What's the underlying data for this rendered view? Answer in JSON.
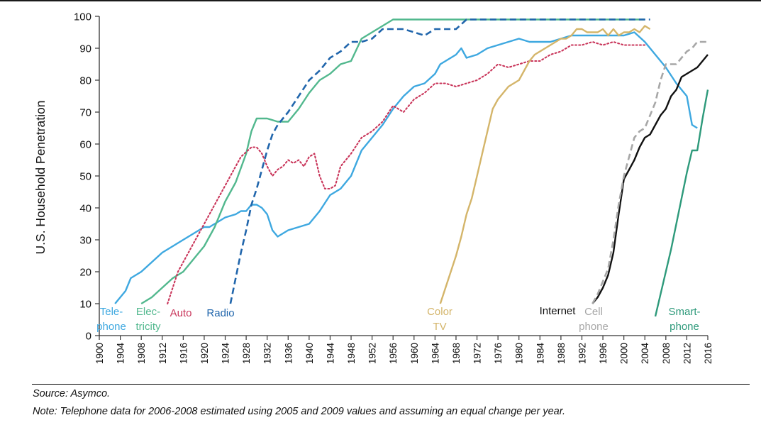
{
  "footer": {
    "source": "Source: Asymco.",
    "note": "Note: Telephone data for 2006-2008 estimated using 2005 and 2009 values and assuming an equal change per year."
  },
  "chart_data": {
    "type": "line",
    "title": "",
    "xlabel": "",
    "ylabel": "U.S. Household Penetration",
    "xlim": [
      1900,
      2016
    ],
    "ylim": [
      0,
      100
    ],
    "xticks": [
      1900,
      1904,
      1908,
      1912,
      1916,
      1920,
      1924,
      1928,
      1932,
      1936,
      1940,
      1944,
      1948,
      1952,
      1956,
      1960,
      1964,
      1968,
      1972,
      1976,
      1980,
      1984,
      1988,
      1992,
      1996,
      2000,
      2004,
      2008,
      2012,
      2016
    ],
    "yticks": [
      0,
      10,
      20,
      30,
      40,
      50,
      60,
      70,
      80,
      90,
      100
    ],
    "grid": false,
    "legend": "none",
    "series": [
      {
        "key": "telephone",
        "label_lines": [
          "Tele-",
          "phone"
        ],
        "color": "#3ea8e0",
        "dash": "solid",
        "x": [
          1903,
          1905,
          1906,
          1908,
          1910,
          1912,
          1914,
          1916,
          1918,
          1920,
          1921,
          1922,
          1924,
          1926,
          1927,
          1928,
          1929,
          1930,
          1931,
          1932,
          1933,
          1934,
          1936,
          1938,
          1940,
          1942,
          1944,
          1946,
          1948,
          1950,
          1952,
          1954,
          1956,
          1958,
          1960,
          1962,
          1964,
          1965,
          1966,
          1968,
          1969,
          1970,
          1972,
          1974,
          1976,
          1978,
          1980,
          1982,
          1984,
          1986,
          1988,
          1990,
          1992,
          1994,
          1996,
          1998,
          2000,
          2002,
          2004,
          2006,
          2008,
          2010,
          2011,
          2012,
          2013,
          2014
        ],
        "y": [
          10,
          14,
          18,
          20,
          23,
          26,
          28,
          30,
          32,
          34,
          34,
          35,
          37,
          38,
          39,
          39,
          41,
          41,
          40,
          38,
          33,
          31,
          33,
          34,
          35,
          39,
          44,
          46,
          50,
          58,
          62,
          66,
          71,
          75,
          78,
          79,
          82,
          85,
          86,
          88,
          90,
          87,
          88,
          90,
          91,
          92,
          93,
          92,
          92,
          92,
          93,
          94,
          94,
          94,
          94,
          94,
          94,
          95,
          92,
          88,
          84,
          79,
          77,
          75,
          66,
          65
        ],
        "markers": false
      },
      {
        "key": "electricity",
        "label_lines": [
          "Elec-",
          "tricity"
        ],
        "color": "#52b88e",
        "dash": "solid",
        "x": [
          1908,
          1910,
          1912,
          1914,
          1916,
          1918,
          1920,
          1922,
          1924,
          1926,
          1928,
          1929,
          1930,
          1932,
          1934,
          1936,
          1938,
          1940,
          1942,
          1944,
          1946,
          1948,
          1950,
          1952,
          1954,
          1956,
          1958,
          1960,
          1962,
          1964,
          1966,
          1968,
          1970,
          1972,
          1976,
          1980,
          1984,
          1988,
          1992,
          1996,
          2000,
          2004
        ],
        "y": [
          10,
          12,
          15,
          18,
          20,
          24,
          28,
          34,
          42,
          48,
          57,
          64,
          68,
          68,
          67,
          67,
          71,
          76,
          80,
          82,
          85,
          86,
          93,
          95,
          97,
          99,
          99,
          99,
          99,
          99,
          99,
          99,
          99,
          99,
          99,
          99,
          99,
          99,
          99,
          99,
          99,
          99
        ],
        "markers": false
      },
      {
        "key": "auto",
        "label_lines": [
          "Auto"
        ],
        "color": "#c9355a",
        "dash": "dotted",
        "x": [
          1913,
          1915,
          1917,
          1919,
          1921,
          1923,
          1925,
          1927,
          1929,
          1930,
          1931,
          1932,
          1933,
          1934,
          1935,
          1936,
          1937,
          1938,
          1939,
          1940,
          1941,
          1942,
          1943,
          1944,
          1945,
          1946,
          1948,
          1950,
          1952,
          1954,
          1956,
          1958,
          1960,
          1962,
          1964,
          1966,
          1968,
          1970,
          1972,
          1974,
          1976,
          1978,
          1980,
          1982,
          1984,
          1986,
          1988,
          1990,
          1992,
          1994,
          1996,
          1998,
          2000,
          2002,
          2004
        ],
        "y": [
          10,
          20,
          26,
          32,
          38,
          44,
          50,
          56,
          59,
          59,
          57,
          53,
          50,
          52,
          53,
          55,
          54,
          55,
          53,
          56,
          57,
          50,
          46,
          46,
          47,
          53,
          57,
          62,
          64,
          67,
          72,
          70,
          74,
          76,
          79,
          79,
          78,
          79,
          80,
          82,
          85,
          84,
          85,
          86,
          86,
          88,
          89,
          91,
          91,
          92,
          91,
          92,
          91,
          91,
          91
        ],
        "markers": false
      },
      {
        "key": "radio",
        "label_lines": [
          "Radio"
        ],
        "color": "#2166ac",
        "dash": "dashed",
        "x": [
          1925,
          1926,
          1927,
          1928,
          1929,
          1930,
          1931,
          1932,
          1933,
          1934,
          1935,
          1936,
          1938,
          1940,
          1942,
          1944,
          1946,
          1948,
          1950,
          1952,
          1954,
          1956,
          1958,
          1960,
          1962,
          1964,
          1966,
          1968,
          1970,
          1972,
          1974,
          1976,
          1980,
          1984,
          1988,
          1992,
          1996,
          2000,
          2005
        ],
        "y": [
          10,
          18,
          26,
          33,
          41,
          46,
          52,
          58,
          63,
          66,
          68,
          70,
          75,
          80,
          83,
          87,
          89,
          92,
          92,
          93,
          96,
          96,
          96,
          95,
          94,
          96,
          96,
          96,
          99,
          99,
          99,
          99,
          99,
          99,
          99,
          99,
          99,
          99,
          99
        ],
        "markers": false
      },
      {
        "key": "color_tv",
        "label_lines": [
          "Color",
          "TV"
        ],
        "color": "#d4b56a",
        "dash": "solid",
        "x": [
          1965,
          1966,
          1967,
          1968,
          1969,
          1970,
          1971,
          1972,
          1973,
          1974,
          1975,
          1976,
          1977,
          1978,
          1979,
          1980,
          1981,
          1982,
          1983,
          1984,
          1985,
          1986,
          1987,
          1988,
          1989,
          1990,
          1991,
          1992,
          1993,
          1994,
          1995,
          1996,
          1997,
          1998,
          1999,
          2000,
          2001,
          2002,
          2003,
          2004,
          2005
        ],
        "y": [
          10,
          15,
          20,
          25,
          31,
          38,
          43,
          50,
          57,
          64,
          71,
          74,
          76,
          78,
          79,
          80,
          83,
          86,
          88,
          89,
          90,
          91,
          92,
          93,
          93,
          94,
          96,
          96,
          95,
          95,
          95,
          96,
          94,
          96,
          94,
          95,
          95,
          96,
          95,
          97,
          96
        ],
        "markers": false
      },
      {
        "key": "internet",
        "label_lines": [
          "Internet"
        ],
        "color": "#111111",
        "dash": "solid",
        "x": [
          1994,
          1995,
          1996,
          1997,
          1998,
          1999,
          2000,
          2001,
          2002,
          2003,
          2004,
          2005,
          2006,
          2007,
          2008,
          2009,
          2010,
          2011,
          2012,
          2013,
          2014,
          2015,
          2016
        ],
        "y": [
          10,
          12,
          15,
          19,
          26,
          38,
          49,
          52,
          55,
          59,
          62,
          63,
          66,
          69,
          71,
          75,
          77,
          81,
          82,
          83,
          84,
          86,
          88
        ],
        "markers": false
      },
      {
        "key": "cell_phone",
        "label_lines": [
          "Cell",
          "phone"
        ],
        "color": "#a7a7a7",
        "dash": "dashed",
        "x": [
          1994,
          1995,
          1996,
          1997,
          1998,
          1999,
          2000,
          2001,
          2002,
          2003,
          2004,
          2005,
          2006,
          2007,
          2008,
          2009,
          2010,
          2011,
          2012,
          2013,
          2014,
          2015,
          2016
        ],
        "y": [
          10,
          13,
          17,
          21,
          30,
          41,
          50,
          56,
          62,
          64,
          65,
          69,
          73,
          80,
          85,
          85,
          85,
          87,
          89,
          90,
          92,
          92,
          92
        ],
        "markers": false
      },
      {
        "key": "smartphone",
        "label_lines": [
          "Smart-",
          "phone"
        ],
        "color": "#2e9a7b",
        "dash": "solid",
        "x": [
          2006,
          2007,
          2008,
          2009,
          2010,
          2011,
          2012,
          2013,
          2014,
          2015,
          2016
        ],
        "y": [
          6,
          13,
          20,
          27,
          35,
          43,
          51,
          58,
          58,
          68,
          77
        ],
        "markers": false
      }
    ]
  }
}
